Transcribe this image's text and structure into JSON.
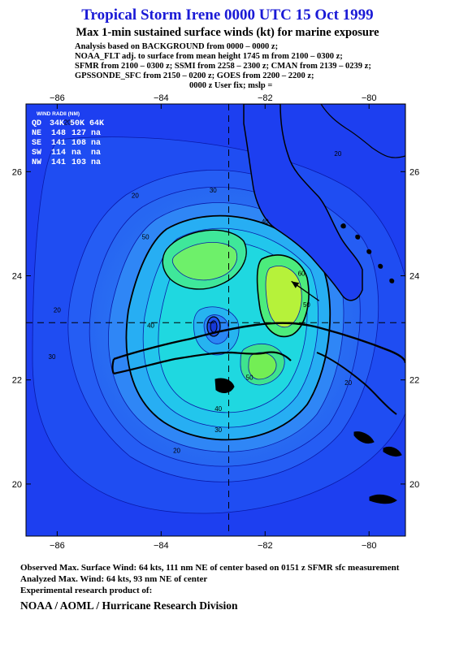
{
  "header": {
    "title": "Tropical Storm Irene 0000 UTC 15 Oct 1999",
    "subtitle": "Max 1-min sustained surface winds (kt) for marine exposure",
    "analysis_lines": [
      "Analysis based on  BACKGROUND from 0000 – 0000 z;",
      "NOAA_FLT adj. to surface from mean height 1745 m from 2100 – 0300 z;",
      "SFMR from 2100 – 0300 z;  SSMI from 2258 – 2300 z;  CMAN from 2139 – 0239 z;",
      "GPSSONDE_SFC from 2150 – 0200 z;  GOES from 2200 – 2200 z;",
      "0000 z User fix; mslp ="
    ]
  },
  "wind_radii": {
    "title": "WIND RADII (NM)",
    "columns": [
      "QD",
      "34K",
      "50K",
      "64K"
    ],
    "rows": [
      [
        "NE",
        "148",
        "127",
        "na"
      ],
      [
        "SE",
        "141",
        "108",
        "na"
      ],
      [
        "SW",
        "114",
        "na",
        "na"
      ],
      [
        "NW",
        "141",
        "103",
        "na"
      ]
    ]
  },
  "chart_data": {
    "type": "contour",
    "variable": "Max 1-min sustained surface winds (kt)",
    "xlim": [
      -86.6,
      -79.3
    ],
    "ylim": [
      19.0,
      27.3
    ],
    "x_ticks": [
      -86,
      -84,
      -82,
      -80
    ],
    "y_ticks": [
      20,
      22,
      24,
      26
    ],
    "x_tick_labels": [
      "−86",
      "−84",
      "−82",
      "−80"
    ],
    "y_tick_labels": [
      "20",
      "22",
      "24",
      "26"
    ],
    "center": {
      "lon": -82.7,
      "lat": 23.1
    },
    "max_wind": {
      "value": 64,
      "lon": -81.4,
      "lat": 23.8
    },
    "contour_labels": [
      {
        "text": "20",
        "lon": -85.8,
        "lat": 26.9
      },
      {
        "text": "20",
        "lon": -80.6,
        "lat": 26.3
      },
      {
        "text": "20",
        "lon": -84.5,
        "lat": 25.5
      },
      {
        "text": "20",
        "lon": -86.0,
        "lat": 23.3
      },
      {
        "text": "20",
        "lon": -83.7,
        "lat": 20.6
      },
      {
        "text": "20",
        "lon": -80.4,
        "lat": 21.9
      },
      {
        "text": "30",
        "lon": -83.0,
        "lat": 25.6
      },
      {
        "text": "30",
        "lon": -86.1,
        "lat": 22.4
      },
      {
        "text": "30",
        "lon": -82.9,
        "lat": 21.0
      },
      {
        "text": "40",
        "lon": -82.0,
        "lat": 25.0
      },
      {
        "text": "40",
        "lon": -84.2,
        "lat": 23.0
      },
      {
        "text": "40",
        "lon": -82.9,
        "lat": 21.4
      },
      {
        "text": "50",
        "lon": -84.3,
        "lat": 24.7
      },
      {
        "text": "50",
        "lon": -81.2,
        "lat": 23.4
      },
      {
        "text": "50",
        "lon": -82.3,
        "lat": 22.0
      },
      {
        "text": "60",
        "lon": -81.3,
        "lat": 24.0
      }
    ],
    "grid": false
  },
  "footer": {
    "observed": "Observed Max. Surface Wind: 64 kts, 111 nm NE of center based on 0151 z SFMR sfc measurement",
    "analyzed": "Analyzed Max. Wind: 64 kts, 93 nm NE of center",
    "experimental": "Experimental research product of:",
    "credit": "NOAA / AOML / Hurricane Research Division"
  },
  "colors": {
    "title": "#1a1ad6",
    "ocean": "#1b3ef0",
    "land": "#000000"
  }
}
